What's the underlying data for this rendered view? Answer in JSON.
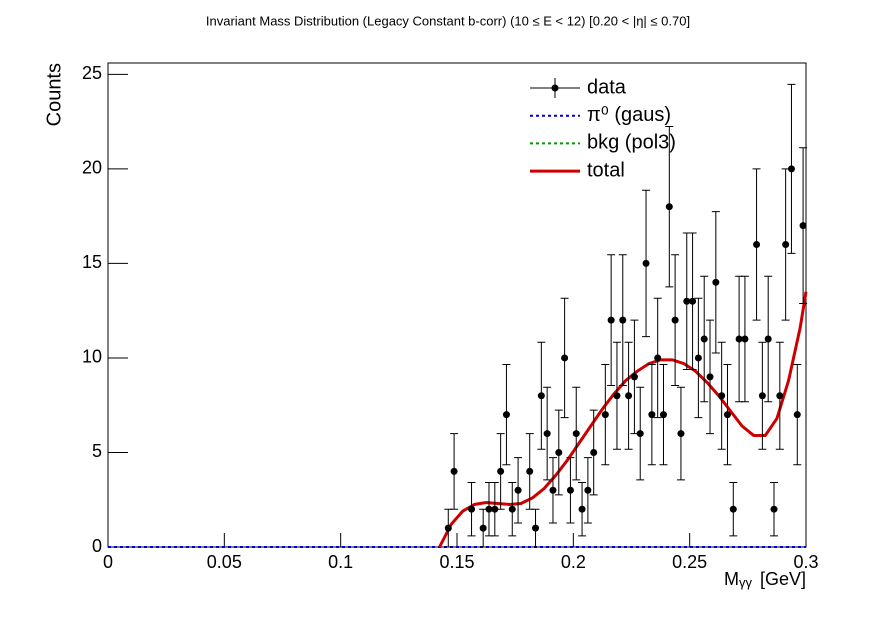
{
  "chart_data": {
    "type": "scatter",
    "title": "Invariant Mass Distribution (Legacy Constant b-corr)   (10 ≤ E < 12)   [0.20 < |η| ≤ 0.70]",
    "xlabel": {
      "base": "M",
      "sub": "γγ",
      "unit": "[GeV]"
    },
    "ylabel": "Counts",
    "xlim": [
      0,
      0.3
    ],
    "ylim": [
      0,
      25.6
    ],
    "xticks": [
      0,
      0.05,
      0.1,
      0.15,
      0.2,
      0.25,
      0.3
    ],
    "yticks": [
      0,
      5,
      10,
      15,
      20,
      25
    ],
    "legend": "top-right",
    "series": [
      {
        "name": "data",
        "color": "#000000",
        "style": "points",
        "x": [
          0.14625,
          0.14875,
          0.15625,
          0.16125,
          0.16375,
          0.16625,
          0.16875,
          0.17125,
          0.17375,
          0.17625,
          0.18125,
          0.18375,
          0.18625,
          0.18875,
          0.19125,
          0.19375,
          0.19625,
          0.19875,
          0.20125,
          0.20375,
          0.20625,
          0.20875,
          0.21375,
          0.21625,
          0.21875,
          0.22125,
          0.22375,
          0.22625,
          0.22875,
          0.23125,
          0.23375,
          0.23625,
          0.23875,
          0.24125,
          0.24375,
          0.24625,
          0.24875,
          0.25125,
          0.25375,
          0.25625,
          0.25875,
          0.26125,
          0.26375,
          0.26625,
          0.26875,
          0.27125,
          0.27375,
          0.27875,
          0.28125,
          0.28375,
          0.28625,
          0.28875,
          0.29125,
          0.29375,
          0.29625,
          0.29875
        ],
        "values": [
          1,
          4,
          2,
          1,
          2,
          2,
          4,
          7,
          2,
          3,
          4,
          1,
          8,
          6,
          3,
          5,
          10,
          3,
          6,
          2,
          3,
          5,
          7,
          12,
          8,
          12,
          8,
          9,
          6,
          15,
          7,
          10,
          7,
          18,
          12,
          6,
          13,
          13,
          10,
          11,
          9,
          14,
          8,
          7,
          2,
          11,
          11,
          16,
          8,
          11,
          2,
          8,
          16,
          20,
          7,
          17
        ],
        "errors": [
          1,
          2,
          1.41,
          1,
          1.41,
          1.41,
          2,
          2.65,
          1.41,
          1.73,
          2,
          1,
          2.83,
          2.45,
          1.73,
          2.24,
          3.16,
          1.73,
          2.45,
          1.41,
          1.73,
          2.24,
          2.65,
          3.46,
          2.83,
          3.46,
          2.83,
          3,
          2.45,
          3.87,
          2.65,
          3.16,
          2.65,
          4.24,
          3.46,
          2.45,
          3.61,
          3.61,
          3.16,
          3.32,
          3,
          3.74,
          2.83,
          2.65,
          1.41,
          3.32,
          3.32,
          4,
          2.83,
          3.32,
          1.41,
          2.83,
          4,
          4.47,
          2.65,
          4.12
        ]
      },
      {
        "name": "π⁰ (gaus)",
        "color": "#0000cc",
        "style": "dotted",
        "x": [
          0,
          0.3
        ],
        "values": [
          0,
          0
        ]
      },
      {
        "name": "bkg (pol3)",
        "color": "#009900",
        "style": "dotted",
        "x": [
          0,
          0.3
        ],
        "values": [
          0,
          0
        ]
      },
      {
        "name": "total",
        "color": "#cc0000",
        "style": "line",
        "x": [
          0.1425,
          0.1475,
          0.1525,
          0.1575,
          0.1625,
          0.1675,
          0.1725,
          0.1775,
          0.1825,
          0.1875,
          0.1925,
          0.1975,
          0.2025,
          0.2075,
          0.2125,
          0.2175,
          0.2225,
          0.2275,
          0.2325,
          0.2375,
          0.2425,
          0.2475,
          0.2525,
          0.2575,
          0.2625,
          0.2675,
          0.2725,
          0.2775,
          0.2825,
          0.2875,
          0.2925,
          0.2975,
          0.3
        ],
        "values": [
          0,
          1.2,
          1.9,
          2.25,
          2.35,
          2.3,
          2.25,
          2.3,
          2.6,
          3.1,
          3.8,
          4.6,
          5.5,
          6.4,
          7.3,
          8.1,
          8.8,
          9.3,
          9.7,
          9.9,
          9.9,
          9.7,
          9.3,
          8.7,
          8.0,
          7.2,
          6.4,
          5.9,
          5.9,
          6.8,
          8.8,
          11.6,
          13.5
        ]
      }
    ]
  }
}
